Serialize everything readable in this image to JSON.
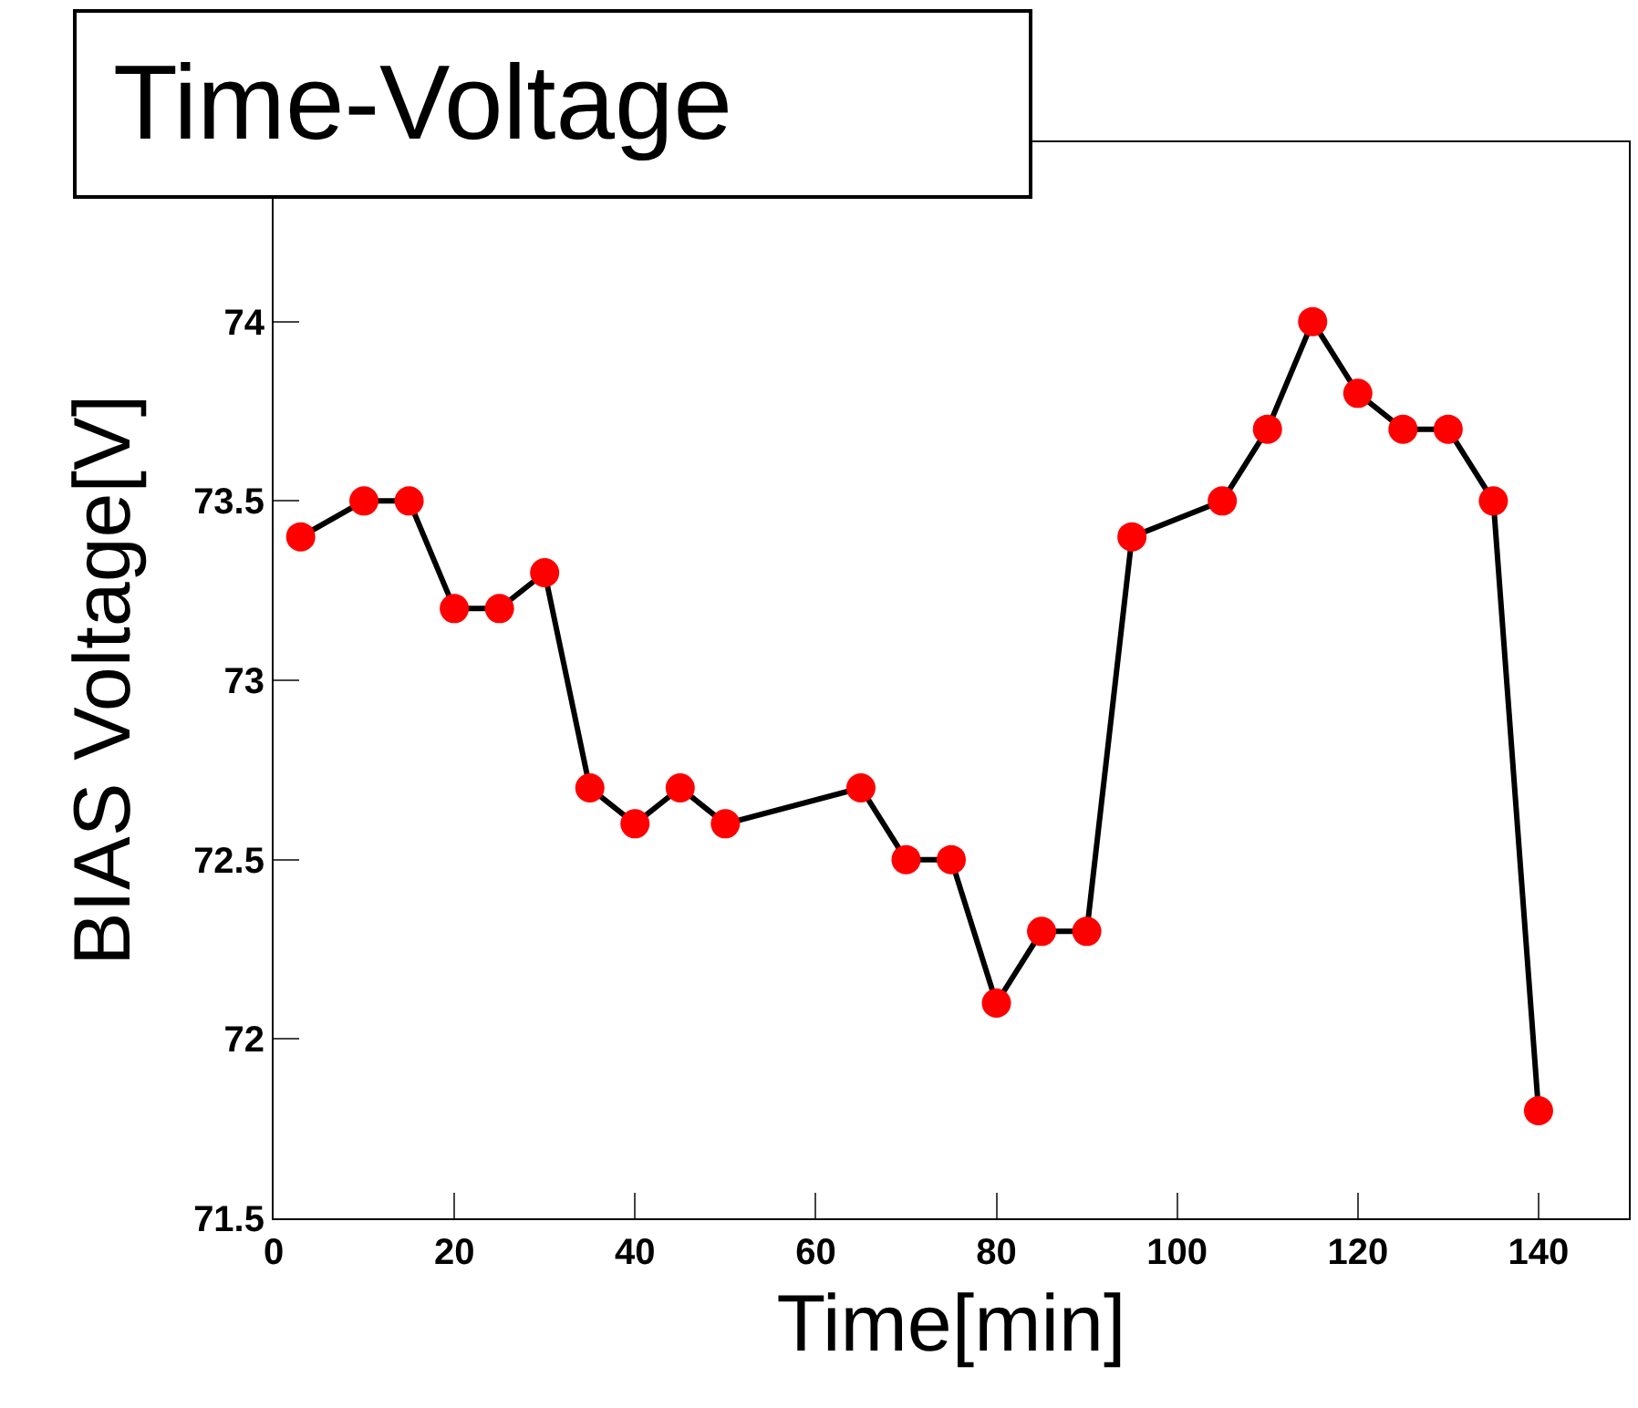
{
  "chart_data": {
    "type": "line",
    "title": "Time-Voltage",
    "xlabel": "Time[min]",
    "ylabel": "BIAS Voltage[V]",
    "x": [
      3,
      10,
      15,
      20,
      25,
      30,
      35,
      40,
      45,
      50,
      65,
      70,
      75,
      80,
      85,
      90,
      95,
      105,
      110,
      115,
      120,
      125,
      130,
      135,
      140
    ],
    "series": [
      {
        "color": "#000000",
        "values": [
          73.4,
          73.5,
          73.5,
          73.2,
          73.2,
          73.3,
          72.7,
          72.6,
          72.7,
          72.6,
          72.7,
          72.5,
          72.5,
          72.1,
          72.3,
          72.3,
          73.4,
          73.5,
          73.7,
          74.0,
          73.8,
          73.7,
          73.7,
          73.5,
          71.8
        ],
        "colors": [
          "#ff0000",
          "#ff0000",
          "#ff0000",
          "#ff0000",
          "#ff0000",
          "#ff0000",
          "#ff0000",
          "#ff0000",
          "#ff0000",
          "#ff0000",
          "#ff0000",
          "#ff0000",
          "#ff0000",
          "#ff0000",
          "#ff0000",
          "#ff0000",
          "#ff0000",
          "#ff0000",
          "#ff0000",
          "#ff0000",
          "#ff0000",
          "#ff0000",
          "#ff0000",
          "#ff0000",
          "#ff0000"
        ]
      }
    ],
    "marker": "circle",
    "line_style": "solid",
    "xlim": [
      0,
      150
    ],
    "xticks": [
      0,
      20,
      40,
      60,
      80,
      100,
      120,
      140
    ],
    "ylim": [
      71.5,
      74.5
    ],
    "yticks": [
      71.5,
      72,
      72.5,
      73,
      73.5,
      74
    ]
  }
}
